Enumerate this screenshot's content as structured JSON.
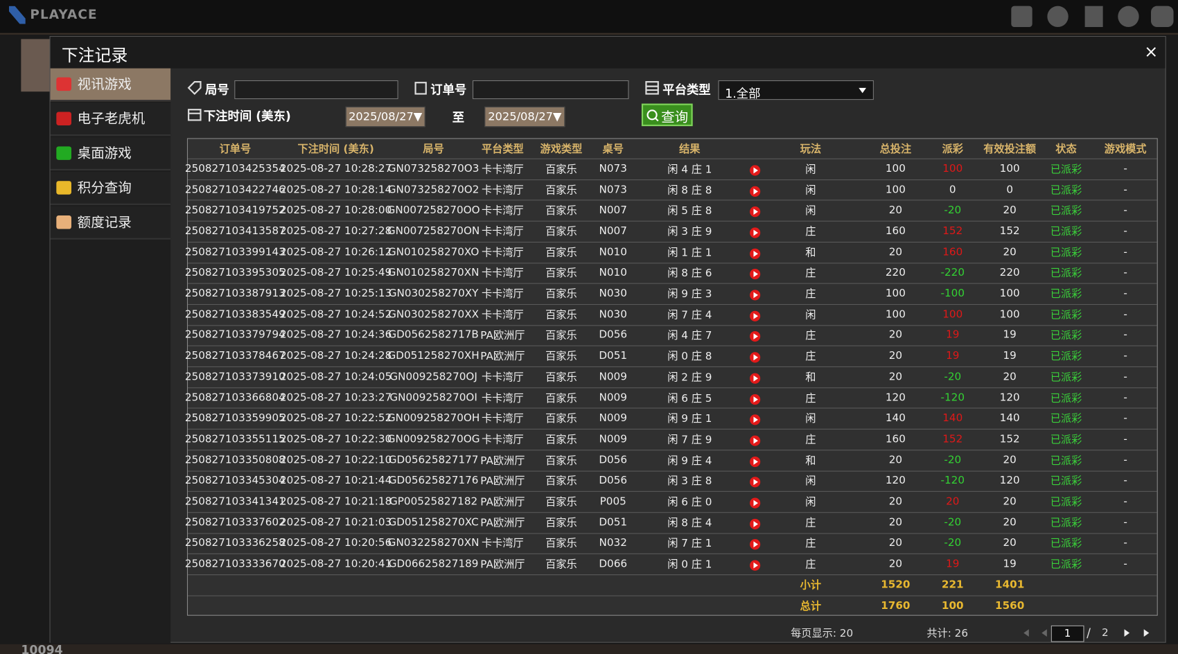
{
  "app": {
    "logo": "PLAYACE",
    "balance": "10094"
  },
  "modal": {
    "title": "下注记录",
    "close": "×"
  },
  "nav": [
    "视讯游戏",
    "电子老虎机",
    "桌面游戏",
    "积分查询",
    "额度记录"
  ],
  "filters": {
    "round_label": "局号",
    "order_label": "订单号",
    "platform_label": "平台类型",
    "platform_value": "1.全部",
    "time_label": "下注时间 (美东)",
    "date_from": "2025/08/27▼",
    "to": "至",
    "date_to": "2025/08/27▼",
    "query": "查询"
  },
  "table": {
    "columns": [
      "订单号",
      "下注时间 (美东)",
      "局号",
      "平台类型",
      "游戏类型",
      "桌号",
      "结果",
      "玩法",
      "总投注",
      "派彩",
      "有效投注额",
      "状态",
      "游戏模式"
    ],
    "rows": [
      [
        "250827103425354",
        "2025-08-27 10:28:27",
        "GN073258270O3",
        "卡卡湾厅",
        "百家乐",
        "N073",
        "闲 4 庄 1",
        "闲",
        100,
        100,
        100,
        "已派彩",
        "-"
      ],
      [
        "250827103422746",
        "2025-08-27 10:28:14",
        "GN073258270O2",
        "卡卡湾厅",
        "百家乐",
        "N073",
        "闲 8 庄 8",
        "闲",
        100,
        0,
        0,
        "已派彩",
        "-"
      ],
      [
        "250827103419752",
        "2025-08-27 10:28:00",
        "GN007258270OO",
        "卡卡湾厅",
        "百家乐",
        "N007",
        "闲 5 庄 8",
        "闲",
        20,
        -20,
        20,
        "已派彩",
        "-"
      ],
      [
        "250827103413587",
        "2025-08-27 10:27:28",
        "GN007258270ON",
        "卡卡湾厅",
        "百家乐",
        "N007",
        "闲 3 庄 9",
        "庄",
        160,
        152,
        152,
        "已派彩",
        "-"
      ],
      [
        "250827103399143",
        "2025-08-27 10:26:12",
        "GN010258270XO",
        "卡卡湾厅",
        "百家乐",
        "N010",
        "闲 1 庄 1",
        "和",
        20,
        160,
        20,
        "已派彩",
        "-"
      ],
      [
        "250827103395305",
        "2025-08-27 10:25:49",
        "GN010258270XN",
        "卡卡湾厅",
        "百家乐",
        "N010",
        "闲 8 庄 6",
        "庄",
        220,
        -220,
        220,
        "已派彩",
        "-"
      ],
      [
        "250827103387913",
        "2025-08-27 10:25:13",
        "GN030258270XY",
        "卡卡湾厅",
        "百家乐",
        "N030",
        "闲 9 庄 3",
        "庄",
        100,
        -100,
        100,
        "已派彩",
        "-"
      ],
      [
        "250827103383549",
        "2025-08-27 10:24:52",
        "GN030258270XX",
        "卡卡湾厅",
        "百家乐",
        "N030",
        "闲 7 庄 4",
        "闲",
        100,
        100,
        100,
        "已派彩",
        "-"
      ],
      [
        "250827103379794",
        "2025-08-27 10:24:36",
        "GD0562582717B",
        "PA欧洲厅",
        "百家乐",
        "D056",
        "闲 4 庄 7",
        "庄",
        20,
        19,
        19,
        "已派彩",
        "-"
      ],
      [
        "250827103378467",
        "2025-08-27 10:24:28",
        "GD051258270XH",
        "PA欧洲厅",
        "百家乐",
        "D051",
        "闲 0 庄 8",
        "庄",
        20,
        19,
        19,
        "已派彩",
        "-"
      ],
      [
        "250827103373910",
        "2025-08-27 10:24:05",
        "GN009258270OJ",
        "卡卡湾厅",
        "百家乐",
        "N009",
        "闲 2 庄 9",
        "和",
        20,
        -20,
        20,
        "已派彩",
        "-"
      ],
      [
        "250827103366804",
        "2025-08-27 10:23:27",
        "GN009258270OI",
        "卡卡湾厅",
        "百家乐",
        "N009",
        "闲 6 庄 5",
        "庄",
        120,
        -120,
        120,
        "已派彩",
        "-"
      ],
      [
        "250827103359905",
        "2025-08-27 10:22:52",
        "GN009258270OH",
        "卡卡湾厅",
        "百家乐",
        "N009",
        "闲 9 庄 1",
        "闲",
        140,
        140,
        140,
        "已派彩",
        "-"
      ],
      [
        "250827103355115",
        "2025-08-27 10:22:30",
        "GN009258270OG",
        "卡卡湾厅",
        "百家乐",
        "N009",
        "闲 7 庄 9",
        "庄",
        160,
        152,
        152,
        "已派彩",
        "-"
      ],
      [
        "250827103350808",
        "2025-08-27 10:22:10",
        "GD05625827177",
        "PA欧洲厅",
        "百家乐",
        "D056",
        "闲 9 庄 4",
        "和",
        20,
        -20,
        20,
        "已派彩",
        "-"
      ],
      [
        "250827103345304",
        "2025-08-27 10:21:44",
        "GD05625827176",
        "PA欧洲厅",
        "百家乐",
        "D056",
        "闲 3 庄 8",
        "闲",
        120,
        -120,
        120,
        "已派彩",
        "-"
      ],
      [
        "250827103341341",
        "2025-08-27 10:21:18",
        "GP00525827182",
        "PA欧洲厅",
        "百家乐",
        "P005",
        "闲 6 庄 0",
        "闲",
        20,
        20,
        20,
        "已派彩",
        "-"
      ],
      [
        "250827103337602",
        "2025-08-27 10:21:03",
        "GD051258270XC",
        "PA欧洲厅",
        "百家乐",
        "D051",
        "闲 8 庄 4",
        "庄",
        20,
        -20,
        20,
        "已派彩",
        "-"
      ],
      [
        "250827103336258",
        "2025-08-27 10:20:56",
        "GN032258270XN",
        "卡卡湾厅",
        "百家乐",
        "N032",
        "闲 7 庄 1",
        "庄",
        20,
        -20,
        20,
        "已派彩",
        "-"
      ],
      [
        "250827103333670",
        "2025-08-27 10:20:41",
        "GD06625827189",
        "PA欧洲厅",
        "百家乐",
        "D066",
        "闲 0 庄 1",
        "庄",
        20,
        19,
        19,
        "已派彩",
        "-"
      ]
    ],
    "subtotal": {
      "label": "小计",
      "total_bet": 1520,
      "payout": 221,
      "effective": 1401
    },
    "total": {
      "label": "总计",
      "total_bet": 1760,
      "payout": 100,
      "effective": 1560
    }
  },
  "footer": {
    "per_page": "每页显示: 20",
    "count": "共计: 26",
    "page": "1",
    "separator": "/",
    "pages": "2"
  }
}
